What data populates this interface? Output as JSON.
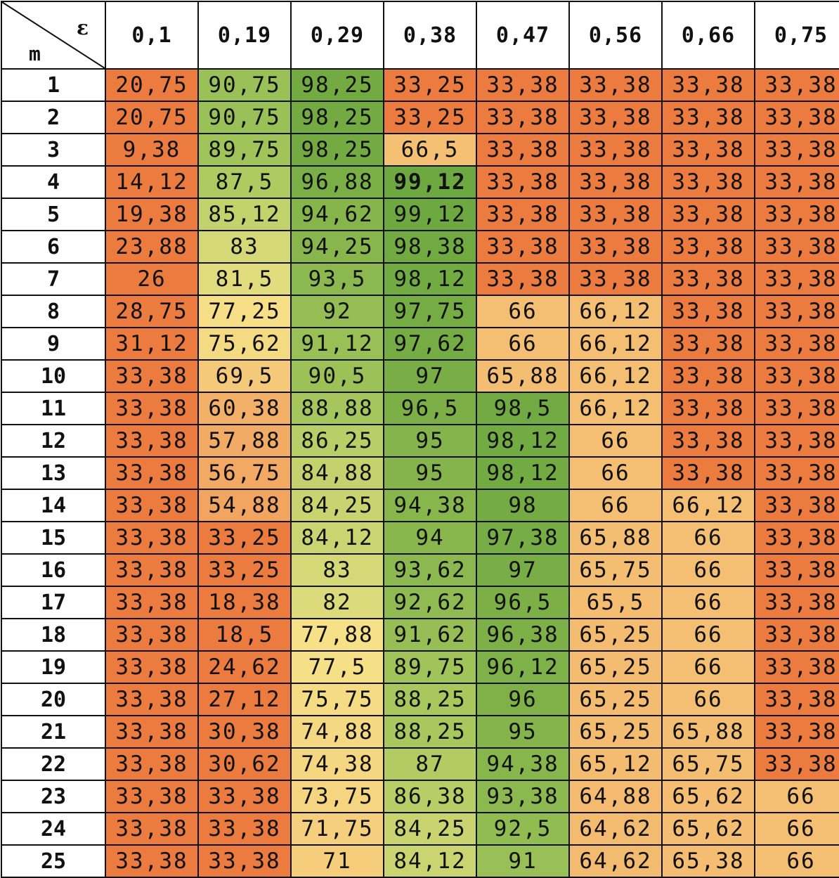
{
  "chart_data": {
    "type": "heatmap",
    "row_header_label": "m",
    "col_header_label": "ε",
    "columns": [
      "0,1",
      "0,19",
      "0,29",
      "0,38",
      "0,47",
      "0,56",
      "0,66",
      "0,75"
    ],
    "rows": [
      {
        "m": "1",
        "values": [
          "20,75",
          "90,75",
          "98,25",
          "33,25",
          "33,38",
          "33,38",
          "33,38",
          "33,38"
        ]
      },
      {
        "m": "2",
        "values": [
          "20,75",
          "90,75",
          "98,25",
          "33,25",
          "33,38",
          "33,38",
          "33,38",
          "33,38"
        ]
      },
      {
        "m": "3",
        "values": [
          "9,38",
          "89,75",
          "98,25",
          "66,5",
          "33,38",
          "33,38",
          "33,38",
          "33,38"
        ]
      },
      {
        "m": "4",
        "values": [
          "14,12",
          "87,5",
          "96,88",
          "99,12",
          "33,38",
          "33,38",
          "33,38",
          "33,38"
        ]
      },
      {
        "m": "5",
        "values": [
          "19,38",
          "85,12",
          "94,62",
          "99,12",
          "33,38",
          "33,38",
          "33,38",
          "33,38"
        ]
      },
      {
        "m": "6",
        "values": [
          "23,88",
          "83",
          "94,25",
          "98,38",
          "33,38",
          "33,38",
          "33,38",
          "33,38"
        ]
      },
      {
        "m": "7",
        "values": [
          "26",
          "81,5",
          "93,5",
          "98,12",
          "33,38",
          "33,38",
          "33,38",
          "33,38"
        ]
      },
      {
        "m": "8",
        "values": [
          "28,75",
          "77,25",
          "92",
          "97,75",
          "66",
          "66,12",
          "33,38",
          "33,38"
        ]
      },
      {
        "m": "9",
        "values": [
          "31,12",
          "75,62",
          "91,12",
          "97,62",
          "66",
          "66,12",
          "33,38",
          "33,38"
        ]
      },
      {
        "m": "10",
        "values": [
          "33,38",
          "69,5",
          "90,5",
          "97",
          "65,88",
          "66,12",
          "33,38",
          "33,38"
        ]
      },
      {
        "m": "11",
        "values": [
          "33,38",
          "60,38",
          "88,88",
          "96,5",
          "98,5",
          "66,12",
          "33,38",
          "33,38"
        ]
      },
      {
        "m": "12",
        "values": [
          "33,38",
          "57,88",
          "86,25",
          "95",
          "98,12",
          "66",
          "33,38",
          "33,38"
        ]
      },
      {
        "m": "13",
        "values": [
          "33,38",
          "56,75",
          "84,88",
          "95",
          "98,12",
          "66",
          "33,38",
          "33,38"
        ]
      },
      {
        "m": "14",
        "values": [
          "33,38",
          "54,88",
          "84,25",
          "94,38",
          "98",
          "66",
          "66,12",
          "33,38"
        ]
      },
      {
        "m": "15",
        "values": [
          "33,38",
          "33,25",
          "84,12",
          "94",
          "97,38",
          "65,88",
          "66",
          "33,38"
        ]
      },
      {
        "m": "16",
        "values": [
          "33,38",
          "33,25",
          "83",
          "93,62",
          "97",
          "65,75",
          "66",
          "33,38"
        ]
      },
      {
        "m": "17",
        "values": [
          "33,38",
          "18,38",
          "82",
          "92,62",
          "96,5",
          "65,5",
          "66",
          "33,38"
        ]
      },
      {
        "m": "18",
        "values": [
          "33,38",
          "18,5",
          "77,88",
          "91,62",
          "96,38",
          "65,25",
          "66",
          "33,38"
        ]
      },
      {
        "m": "19",
        "values": [
          "33,38",
          "24,62",
          "77,5",
          "89,75",
          "96,12",
          "65,25",
          "66",
          "33,38"
        ]
      },
      {
        "m": "20",
        "values": [
          "33,38",
          "27,12",
          "75,75",
          "88,25",
          "96",
          "65,25",
          "66",
          "33,38"
        ]
      },
      {
        "m": "21",
        "values": [
          "33,38",
          "30,38",
          "74,88",
          "88,25",
          "95",
          "65,25",
          "65,88",
          "33,38"
        ]
      },
      {
        "m": "22",
        "values": [
          "33,38",
          "30,62",
          "74,38",
          "87",
          "94,38",
          "65,12",
          "65,75",
          "33,38"
        ]
      },
      {
        "m": "23",
        "values": [
          "33,38",
          "33,38",
          "73,75",
          "86,38",
          "93,38",
          "64,88",
          "65,62",
          "66"
        ]
      },
      {
        "m": "24",
        "values": [
          "33,38",
          "33,38",
          "71,75",
          "84,25",
          "92,5",
          "64,62",
          "65,62",
          "66"
        ]
      },
      {
        "m": "25",
        "values": [
          "33,38",
          "33,38",
          "71",
          "84,12",
          "91",
          "64,62",
          "65,38",
          "66"
        ]
      }
    ],
    "highlighted_max": "99,12",
    "color_scale": {
      "low": "#ec7b40",
      "mid_low": "#f3b36b",
      "mid": "#f6e48a",
      "mid_high": "#a9c95e",
      "high": "#6ea840"
    }
  }
}
